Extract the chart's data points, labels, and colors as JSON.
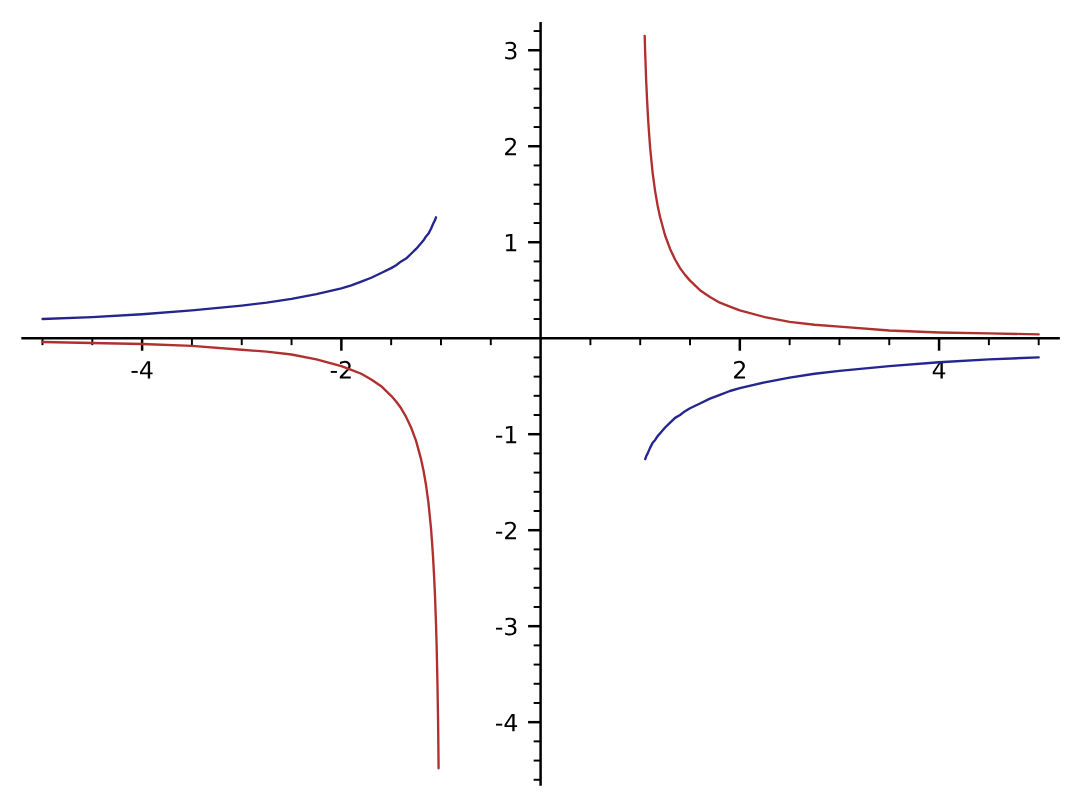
{
  "chart_data": {
    "type": "line",
    "series": [
      {
        "color": "#25258f",
        "x": [
          -5,
          -4.5,
          -4,
          -3.5,
          -3,
          -2.75,
          -2.5,
          -2.25,
          -2,
          -1.9,
          -1.8,
          -1.7,
          -1.6,
          -1.5,
          -1.45,
          -1.4,
          -1.35,
          -1.3,
          -1.25,
          -1.2,
          -1.175,
          -1.15,
          -1.125,
          -1.1,
          -1.075,
          -1.06,
          -1.05
        ],
        "values": [
          0.2,
          0.22,
          0.25,
          0.29,
          0.34,
          0.37,
          0.41,
          0.46,
          0.52,
          0.55,
          0.59,
          0.63,
          0.68,
          0.73,
          0.76,
          0.8,
          0.83,
          0.88,
          0.93,
          0.99,
          1.02,
          1.06,
          1.09,
          1.14,
          1.2,
          1.23,
          1.26
        ]
      },
      {
        "color": "#25258f",
        "x": [
          1.05,
          1.06,
          1.075,
          1.1,
          1.125,
          1.15,
          1.175,
          1.2,
          1.25,
          1.3,
          1.35,
          1.4,
          1.45,
          1.5,
          1.6,
          1.7,
          1.8,
          1.9,
          2,
          2.25,
          2.5,
          2.75,
          3,
          3.5,
          4,
          4.5,
          5
        ],
        "values": [
          -1.26,
          -1.23,
          -1.2,
          -1.14,
          -1.09,
          -1.06,
          -1.02,
          -0.99,
          -0.93,
          -0.88,
          -0.83,
          -0.8,
          -0.76,
          -0.73,
          -0.68,
          -0.63,
          -0.59,
          -0.55,
          -0.52,
          -0.46,
          -0.41,
          -0.37,
          -0.34,
          -0.29,
          -0.25,
          -0.22,
          -0.2
        ]
      },
      {
        "color": "#b03030",
        "x": [
          -5,
          -4.5,
          -4,
          -3.5,
          -3,
          -2.75,
          -2.5,
          -2.25,
          -2,
          -1.9,
          -1.8,
          -1.7,
          -1.6,
          -1.5,
          -1.45,
          -1.4,
          -1.35,
          -1.3,
          -1.25,
          -1.2,
          -1.175,
          -1.15,
          -1.125,
          -1.1,
          -1.09,
          -1.08,
          -1.07,
          -1.06,
          -1.05,
          -1.045,
          -1.04,
          -1.035,
          -1.03,
          -1.027,
          -1.024
        ],
        "values": [
          -0.04,
          -0.05,
          -0.06,
          -0.08,
          -0.12,
          -0.14,
          -0.17,
          -0.22,
          -0.29,
          -0.33,
          -0.37,
          -0.43,
          -0.5,
          -0.6,
          -0.66,
          -0.73,
          -0.82,
          -0.93,
          -1.07,
          -1.26,
          -1.38,
          -1.53,
          -1.72,
          -1.98,
          -2.12,
          -2.27,
          -2.46,
          -2.68,
          -2.97,
          -3.15,
          -3.37,
          -3.62,
          -3.93,
          -4.16,
          -4.48
        ]
      },
      {
        "color": "#b03030",
        "x": [
          1.045,
          1.05,
          1.06,
          1.07,
          1.08,
          1.09,
          1.1,
          1.125,
          1.15,
          1.175,
          1.2,
          1.25,
          1.3,
          1.35,
          1.4,
          1.45,
          1.5,
          1.6,
          1.7,
          1.8,
          1.9,
          2,
          2.25,
          2.5,
          2.75,
          3,
          3.5,
          4,
          4.5,
          5
        ],
        "values": [
          3.15,
          2.97,
          2.68,
          2.46,
          2.27,
          2.12,
          1.98,
          1.72,
          1.53,
          1.38,
          1.26,
          1.07,
          0.93,
          0.82,
          0.73,
          0.66,
          0.6,
          0.5,
          0.43,
          0.37,
          0.33,
          0.29,
          0.22,
          0.17,
          0.14,
          0.12,
          0.08,
          0.06,
          0.05,
          0.04
        ]
      }
    ],
    "xlim": [
      -5.2,
      5.2
    ],
    "ylim": [
      -4.65,
      3.28
    ],
    "xticks": [
      {
        "value": -5,
        "label": null
      },
      {
        "value": -4.5,
        "label": null
      },
      -4,
      {
        "value": -3.5,
        "label": null
      },
      {
        "value": -3,
        "label": null
      },
      {
        "value": -2.5,
        "label": null
      },
      -2,
      {
        "value": -1.5,
        "label": null
      },
      {
        "value": -1,
        "label": null
      },
      {
        "value": -0.5,
        "label": null
      },
      {
        "value": 0.5,
        "label": null
      },
      {
        "value": 1,
        "label": null
      },
      {
        "value": 1.5,
        "label": null
      },
      2,
      {
        "value": 2.5,
        "label": null
      },
      {
        "value": 3,
        "label": null
      },
      {
        "value": 3.5,
        "label": null
      },
      4,
      {
        "value": 4.5,
        "label": null
      },
      {
        "value": 5,
        "label": null
      }
    ],
    "yticks": [
      {
        "value": -4.6,
        "label": null
      },
      {
        "value": -4.4,
        "label": null
      },
      {
        "value": -4.2,
        "label": null
      },
      -4,
      {
        "value": -3.8,
        "label": null
      },
      {
        "value": -3.6,
        "label": null
      },
      {
        "value": -3.4,
        "label": null
      },
      {
        "value": -3.2,
        "label": null
      },
      -3,
      {
        "value": -2.8,
        "label": null
      },
      {
        "value": -2.6,
        "label": null
      },
      {
        "value": -2.4,
        "label": null
      },
      {
        "value": -2.2,
        "label": null
      },
      -2,
      {
        "value": -1.8,
        "label": null
      },
      {
        "value": -1.6,
        "label": null
      },
      {
        "value": -1.4,
        "label": null
      },
      {
        "value": -1.2,
        "label": null
      },
      -1,
      {
        "value": -0.8,
        "label": null
      },
      {
        "value": -0.6,
        "label": null
      },
      {
        "value": -0.4,
        "label": null
      },
      {
        "value": -0.2,
        "label": null
      },
      {
        "value": 0.2,
        "label": null
      },
      {
        "value": 0.4,
        "label": null
      },
      {
        "value": 0.6,
        "label": null
      },
      {
        "value": 0.8,
        "label": null
      },
      1,
      {
        "value": 1.2,
        "label": null
      },
      {
        "value": 1.4,
        "label": null
      },
      {
        "value": 1.6,
        "label": null
      },
      {
        "value": 1.8,
        "label": null
      },
      2,
      {
        "value": 2.2,
        "label": null
      },
      {
        "value": 2.4,
        "label": null
      },
      {
        "value": 2.6,
        "label": null
      },
      {
        "value": 2.8,
        "label": null
      },
      3,
      {
        "value": 3.2,
        "label": null
      }
    ]
  }
}
